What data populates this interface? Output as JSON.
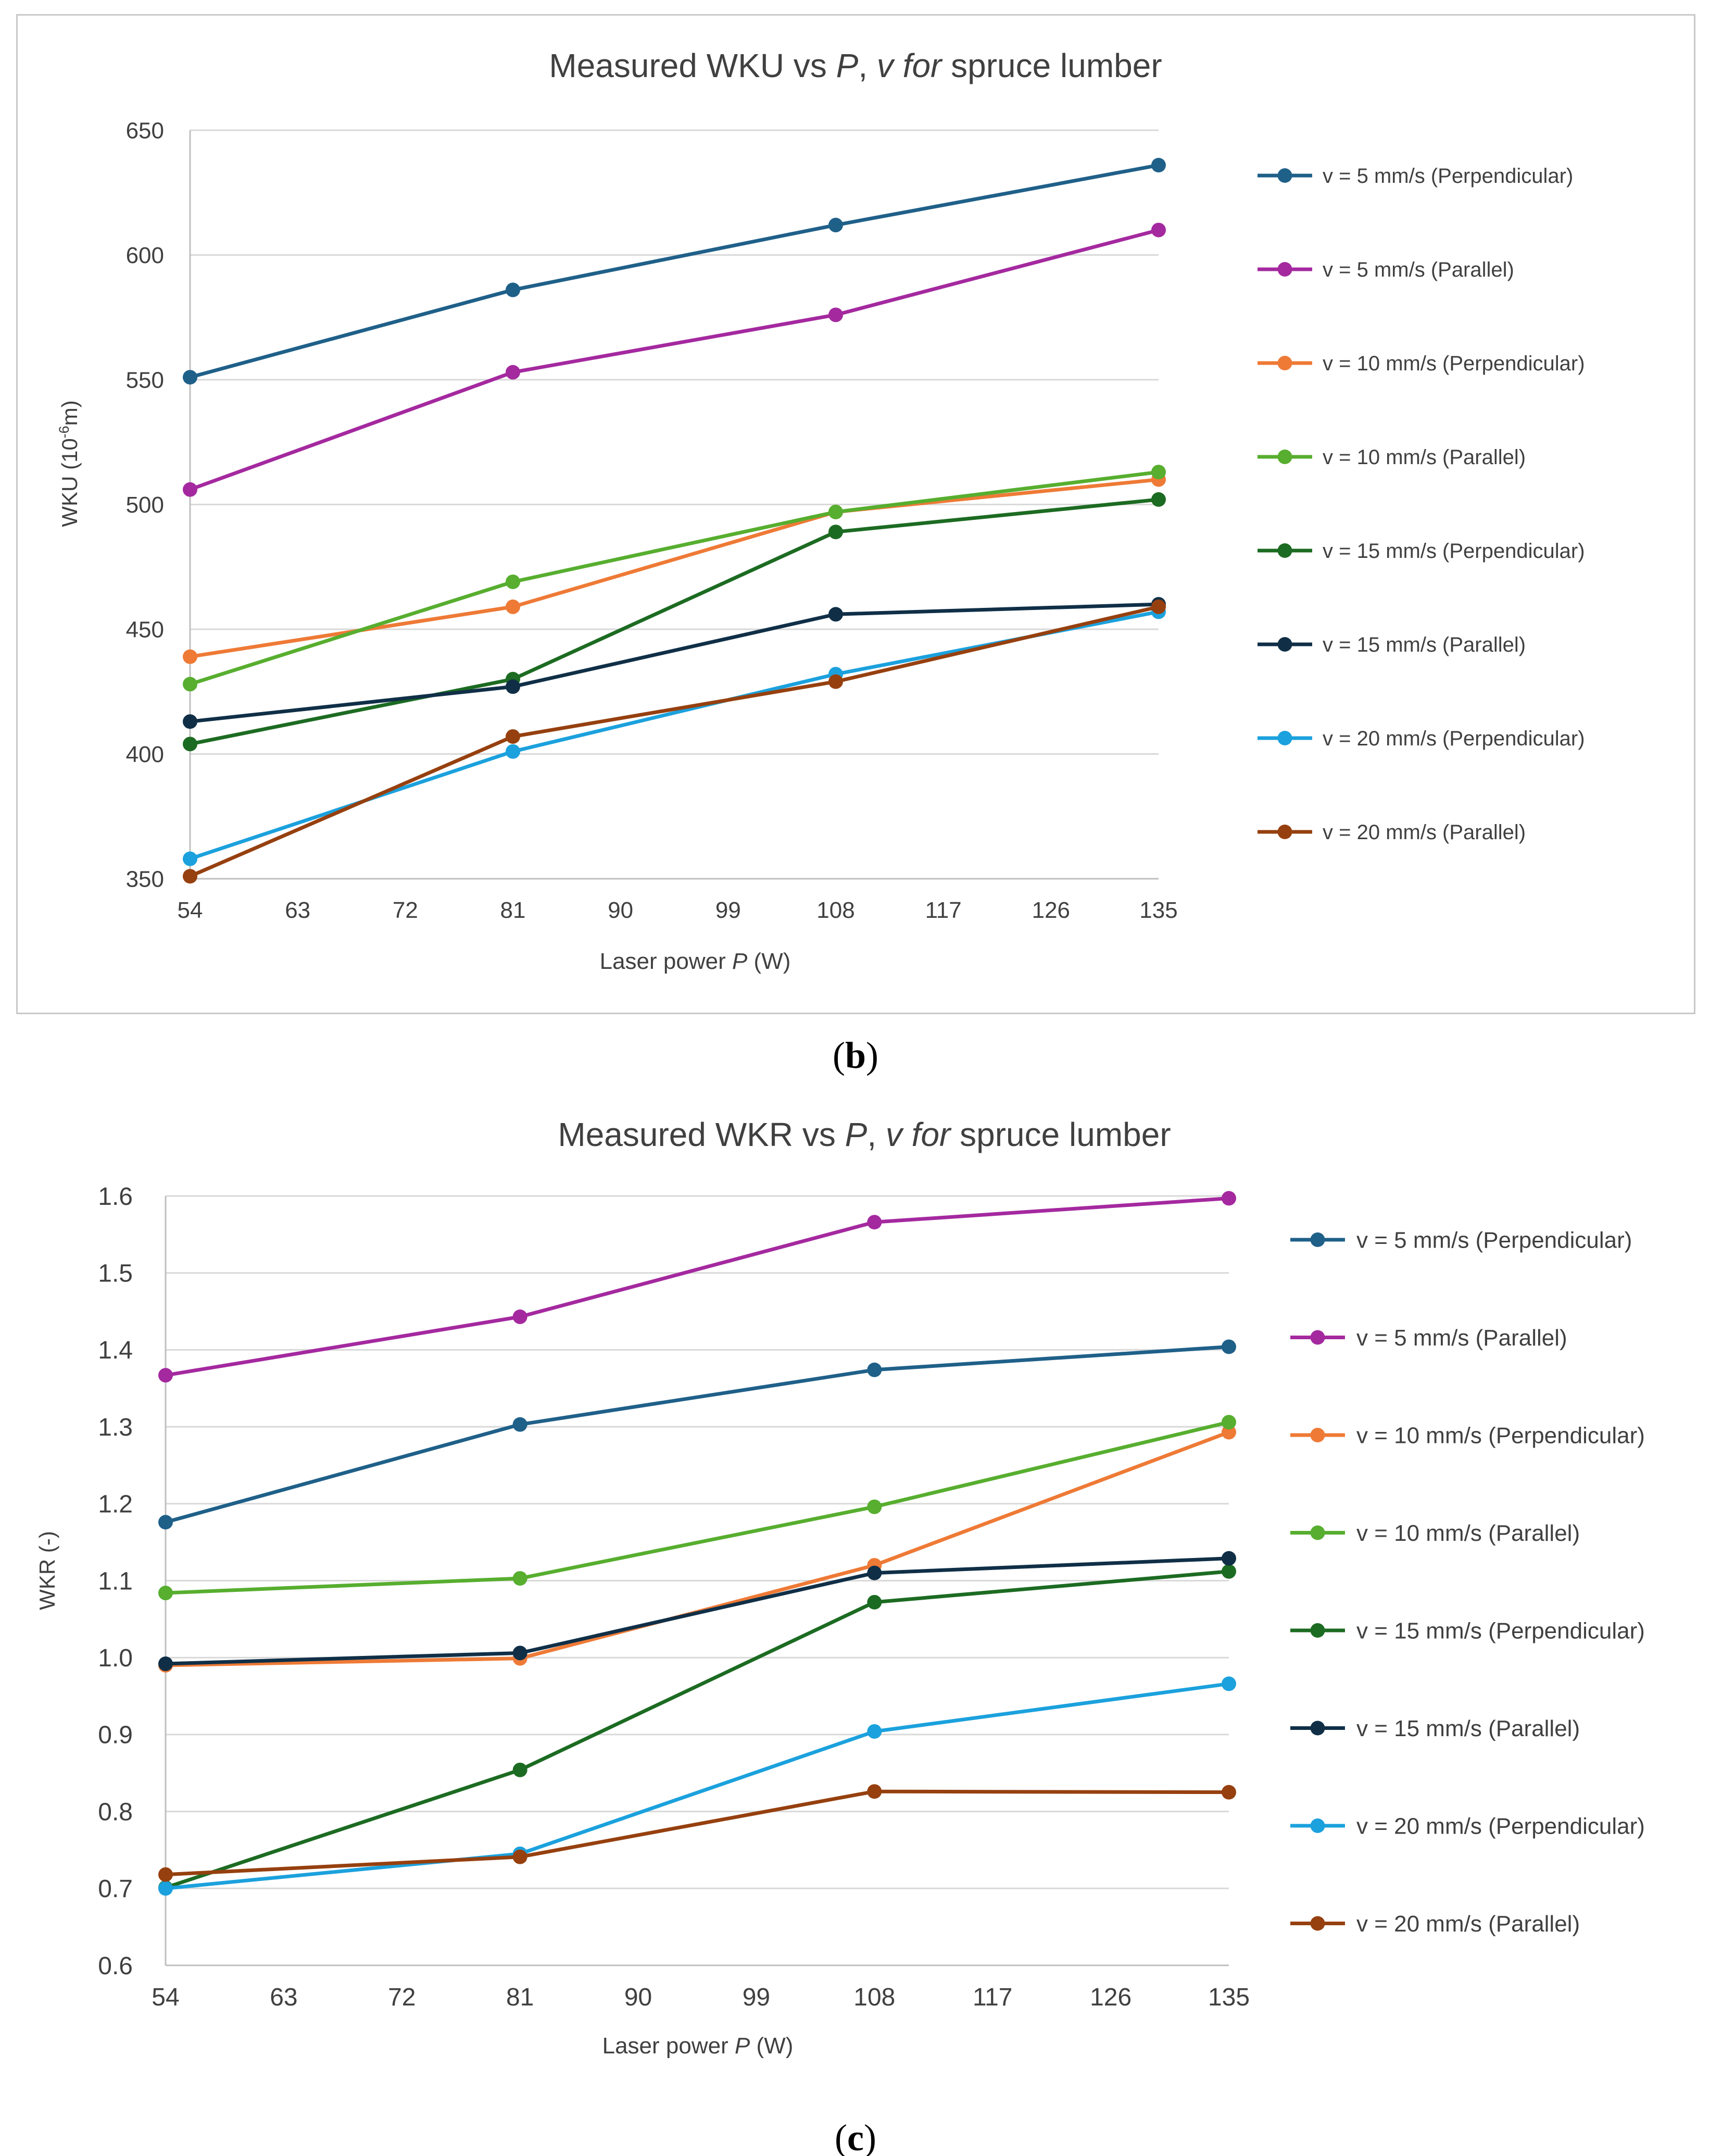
{
  "chart_data": [
    {
      "panel": "b",
      "type": "line",
      "title_main": "Measured WKU vs ",
      "title_p": "P",
      "title_sep": ", ",
      "title_v": "v",
      "title_for": " for",
      "title_tail": " spruce lumber",
      "xlabel": "Laser power ",
      "xlabel_var": "P",
      "xlabel_unit": " (W)",
      "ylabel_pre": "WKU (10",
      "ylabel_sup": "-6",
      "ylabel_post": "m)",
      "x_ticks": [
        "54",
        "63",
        "72",
        "81",
        "90",
        "99",
        "108",
        "117",
        "126",
        "135"
      ],
      "y_ticks": [
        "350",
        "400",
        "450",
        "500",
        "550",
        "600",
        "650"
      ],
      "xlim": [
        54,
        135
      ],
      "ylim": [
        350,
        650
      ],
      "x": [
        54,
        81,
        108,
        135
      ],
      "series": [
        {
          "name": "v = 5 mm/s (Perpendicular)",
          "color": "#1f6089",
          "values": [
            551,
            586,
            612,
            636
          ]
        },
        {
          "name": "v = 5 mm/s (Parallel)",
          "color": "#a4299f",
          "values": [
            506,
            553,
            576,
            610
          ]
        },
        {
          "name": "v = 10 mm/s (Perpendicular)",
          "color": "#ee7a36",
          "values": [
            439,
            459,
            497,
            510
          ]
        },
        {
          "name": "v = 10 mm/s (Parallel)",
          "color": "#57ae2f",
          "values": [
            428,
            469,
            497,
            513
          ]
        },
        {
          "name": "v = 15 mm/s (Perpendicular)",
          "color": "#1c6b22",
          "values": [
            404,
            430,
            489,
            502
          ]
        },
        {
          "name": "v = 15 mm/s (Parallel)",
          "color": "#102f47",
          "values": [
            413,
            427,
            456,
            460
          ]
        },
        {
          "name": "v = 20 mm/s (Perpendicular)",
          "color": "#1ba1dd",
          "values": [
            358,
            401,
            432,
            457
          ]
        },
        {
          "name": "v = 20 mm/s (Parallel)",
          "color": "#96400f",
          "values": [
            351,
            407,
            429,
            459
          ]
        }
      ],
      "caption_open": "(",
      "caption_letter": "b",
      "caption_close": ")"
    },
    {
      "panel": "c",
      "type": "line",
      "title_main": "Measured WKR vs ",
      "title_p": "P",
      "title_sep": ", ",
      "title_v": "v",
      "title_for": " for",
      "title_tail": " spruce lumber",
      "xlabel": "Laser power ",
      "xlabel_var": "P",
      "xlabel_unit": " (W)",
      "ylabel": "WKR (-)",
      "x_ticks": [
        "54",
        "63",
        "72",
        "81",
        "90",
        "99",
        "108",
        "117",
        "126",
        "135"
      ],
      "y_ticks": [
        "0.6",
        "0.7",
        "0.8",
        "0.9",
        "1.0",
        "1.1",
        "1.2",
        "1.3",
        "1.4",
        "1.5",
        "1.6"
      ],
      "xlim": [
        54,
        135
      ],
      "ylim": [
        0.6,
        1.6
      ],
      "x": [
        54,
        81,
        108,
        135
      ],
      "series": [
        {
          "name": "v = 5 mm/s (Perpendicular)",
          "color": "#1f6089",
          "values": [
            1.176,
            1.303,
            1.374,
            1.404
          ]
        },
        {
          "name": "v = 5 mm/s (Parallel)",
          "color": "#a4299f",
          "values": [
            1.367,
            1.443,
            1.566,
            1.597
          ]
        },
        {
          "name": "v = 10 mm/s (Perpendicular)",
          "color": "#ee7a36",
          "values": [
            0.99,
            0.999,
            1.12,
            1.293
          ]
        },
        {
          "name": "v = 10 mm/s (Parallel)",
          "color": "#57ae2f",
          "values": [
            1.084,
            1.103,
            1.196,
            1.306
          ]
        },
        {
          "name": "v = 15 mm/s (Perpendicular)",
          "color": "#1c6b22",
          "values": [
            0.701,
            0.854,
            1.072,
            1.112
          ]
        },
        {
          "name": "v = 15 mm/s (Parallel)",
          "color": "#102f47",
          "values": [
            0.992,
            1.006,
            1.11,
            1.129
          ]
        },
        {
          "name": "v = 20 mm/s (Perpendicular)",
          "color": "#1ba1dd",
          "values": [
            0.7,
            0.745,
            0.904,
            0.966
          ]
        },
        {
          "name": "v = 20 mm/s (Parallel)",
          "color": "#96400f",
          "values": [
            0.718,
            0.741,
            0.826,
            0.825
          ]
        }
      ],
      "caption_open": "(",
      "caption_letter": "c",
      "caption_close": ")"
    }
  ]
}
